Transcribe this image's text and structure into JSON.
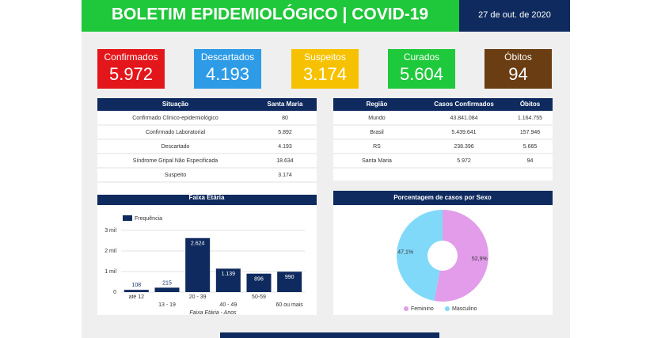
{
  "header": {
    "title": "BOLETIM EPIDEMIOLÓGICO | COVID-19",
    "date": "27 de out. de 2020"
  },
  "cards": [
    {
      "label": "Confirmados",
      "value": "5.972",
      "color": "#e3161b"
    },
    {
      "label": "Descartados",
      "value": "4.193",
      "color": "#2e9be6"
    },
    {
      "label": "Suspeitos",
      "value": "3.174",
      "color": "#f6c200"
    },
    {
      "label": "Curados",
      "value": "5.604",
      "color": "#1ec93b"
    },
    {
      "label": "Óbitos",
      "value": "94",
      "color": "#6a3d12"
    }
  ],
  "tables": [
    {
      "columns": [
        "Situação",
        "Santa Maria"
      ],
      "rows": [
        [
          "Confirmado Clínico-epidemiológico",
          "80"
        ],
        [
          "Confirmado Laboratorial",
          "5.892"
        ],
        [
          "Descartado",
          "4.193"
        ],
        [
          "Síndrome Gripal Não Especificada",
          "18.634"
        ],
        [
          "Suspeito",
          "3.174"
        ]
      ]
    },
    {
      "columns": [
        "Região",
        "Casos Confirmados",
        "Óbitos"
      ],
      "rows": [
        [
          "Mundo",
          "43.841.084",
          "1.164.755"
        ],
        [
          "Brasil",
          "5.439.641",
          "157.946"
        ],
        [
          "RS",
          "238.396",
          "5.665"
        ],
        [
          "Santa Maria",
          "5.972",
          "94"
        ]
      ]
    }
  ],
  "chart_data": [
    {
      "type": "bar",
      "title": "Faixa Etária",
      "xlabel": "Faixa Etária - Anos",
      "categories": [
        "até 12",
        "13 - 19",
        "20 - 39",
        "40 - 49",
        "50-59",
        "60 ou mais"
      ],
      "series": [
        {
          "name": "Frequência",
          "color": "#0e2a5e",
          "values": [
            108,
            215,
            2624,
            1139,
            896,
            990
          ],
          "value_labels": [
            "108",
            "215",
            "2.624",
            "1.139",
            "896",
            "990"
          ]
        }
      ],
      "ylim": [
        0,
        3000
      ],
      "yticks": [
        0,
        {
          "value": 1000,
          "label": "1 mil"
        },
        {
          "value": 2000,
          "label": "2 mil"
        },
        {
          "value": 3000,
          "label": "3 mil"
        }
      ],
      "grid": true
    },
    {
      "type": "pie",
      "title": "Porcentagem de casos por Sexo",
      "categories": [
        "Feminino",
        "Masculino"
      ],
      "values": [
        52.9,
        47.1
      ],
      "value_labels": [
        "52,9%",
        "47,1%"
      ],
      "colors": [
        "#e29ce9",
        "#80d9f9"
      ]
    }
  ]
}
